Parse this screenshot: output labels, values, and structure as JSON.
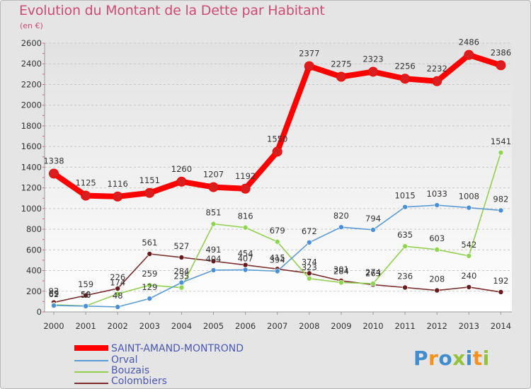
{
  "header": {
    "title": "Evolution du Montant de la Dette par Habitant",
    "unit": "(en €)"
  },
  "logo": {
    "text": "Proxiti",
    "colors": [
      "#3f8ccf",
      "#f29221",
      "#3f8ccf",
      "#94c23a",
      "#3f8ccf",
      "#f29221",
      "#94c23a"
    ]
  },
  "chart_data": {
    "type": "line",
    "x": [
      "2000",
      "2001",
      "2002",
      "2003",
      "2004",
      "2005",
      "2006",
      "2007",
      "2008",
      "2009",
      "2010",
      "2011",
      "2012",
      "2013",
      "2014"
    ],
    "ylim": [
      0,
      2600
    ],
    "yticks": [
      0,
      200,
      400,
      600,
      800,
      1000,
      1200,
      1400,
      1600,
      1800,
      2000,
      2200,
      2400,
      2600
    ],
    "grid": "horizontal",
    "legend_position": "bottom-left",
    "series": [
      {
        "name": "SAINT-AMAND-MONTROND",
        "color": "#ff0000",
        "marker": "#e8322c",
        "values": [
          1338,
          1125,
          1116,
          1151,
          1260,
          1207,
          1192,
          1550,
          2377,
          2275,
          2323,
          2256,
          2232,
          2486,
          2386
        ]
      },
      {
        "name": "Orval",
        "color": "#5b9bd5",
        "marker": "#4a90d9",
        "values": [
          62,
          56,
          48,
          129,
          284,
          404,
          407,
          394,
          672,
          820,
          794,
          1015,
          1033,
          1008,
          982
        ]
      },
      {
        "name": "Bouzais",
        "color": "#92d050",
        "marker": "#8fd650",
        "values": [
          69,
          58,
          174,
          259,
          235,
          851,
          816,
          679,
          323,
          284,
          274,
          635,
          603,
          542,
          1541
        ]
      },
      {
        "name": "Colombiers",
        "color": "#7b2c2c",
        "marker": "#6a1a1a",
        "values": [
          92,
          159,
          226,
          561,
          527,
          491,
          454,
          415,
          374,
          301,
          263,
          236,
          208,
          240,
          192
        ]
      }
    ]
  }
}
